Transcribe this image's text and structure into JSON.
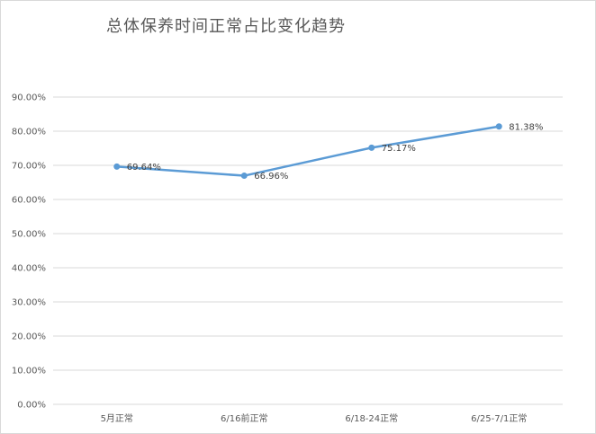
{
  "chart_data": {
    "type": "line",
    "title": "总体保养时间正常占比变化趋势",
    "categories": [
      "5月正常",
      "6/16前正常",
      "6/18-24正常",
      "6/25-7/1正常"
    ],
    "series": [
      {
        "values": [
          69.64,
          66.96,
          75.17,
          81.38
        ],
        "labels": [
          "69.64%",
          "66.96%",
          "75.17%",
          "81.38%"
        ],
        "color": "#5b9bd5"
      }
    ],
    "y_ticks": [
      "0.00%",
      "10.00%",
      "20.00%",
      "30.00%",
      "40.00%",
      "50.00%",
      "60.00%",
      "70.00%",
      "80.00%",
      "90.00%"
    ],
    "ylim": [
      0,
      90
    ],
    "grid": true,
    "legend": "none",
    "gridline_color": "#d9d9d9"
  }
}
